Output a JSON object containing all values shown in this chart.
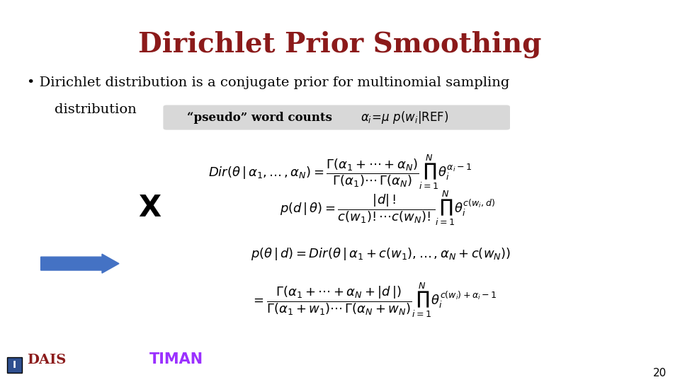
{
  "title": "Dirichlet Prior Smoothing",
  "title_color": "#8B1A1A",
  "title_fontsize": 28,
  "bg_color": "#FFFFFF",
  "slide_number": "20",
  "bullet_text": "Dirichlet distribution is a conjugate prior for multinomial sampling\ndistribution",
  "pseudo_label": "“pseudo” word counts",
  "alpha_label": "αi=μ p(wi|REF)",
  "arrow_color": "#4472C4",
  "formula_color": "#000000",
  "highlight_box_color": "#D3D3D3"
}
